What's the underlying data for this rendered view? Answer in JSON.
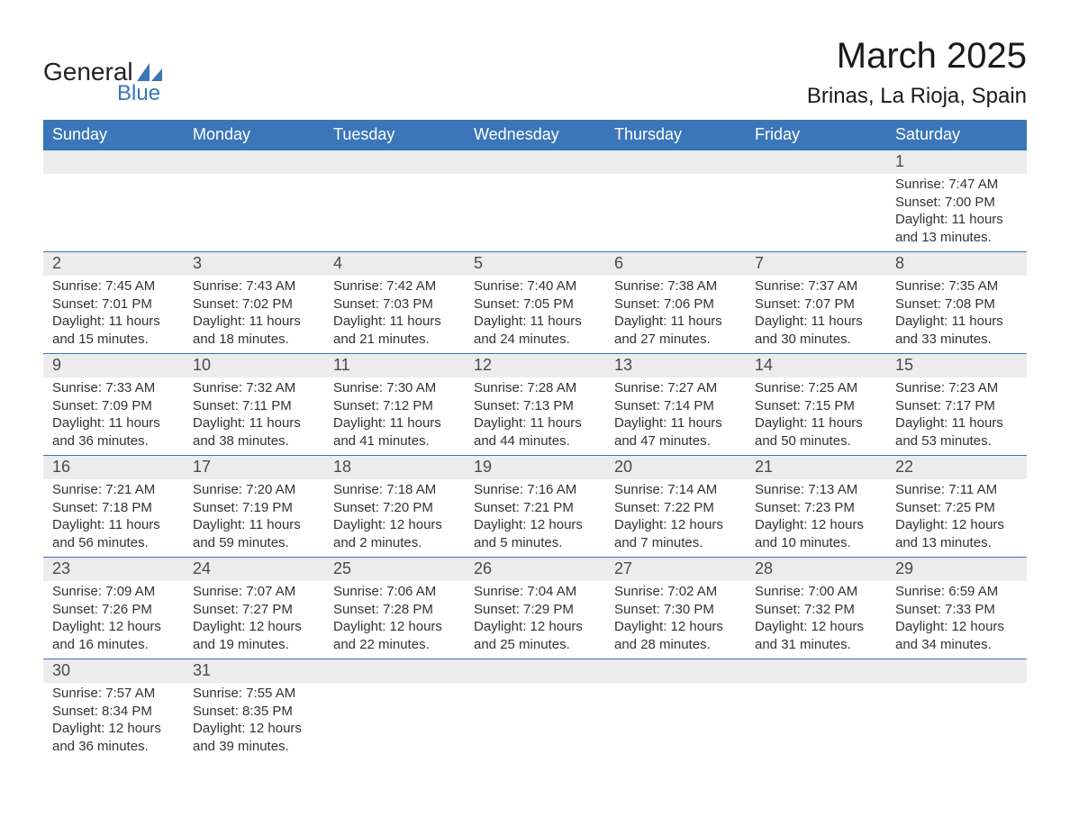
{
  "logo": {
    "text1": "General",
    "text2": "Blue",
    "sail_color": "#3a76b8"
  },
  "title": "March 2025",
  "location": "Brinas, La Rioja, Spain",
  "colors": {
    "header_bg": "#3a76b8",
    "header_text": "#ffffff",
    "daynum_bg": "#ececec",
    "daynum_text": "#4a4a4a",
    "body_text": "#333333",
    "border": "#3a76b8",
    "page_bg": "#ffffff"
  },
  "typography": {
    "title_fontsize": 40,
    "location_fontsize": 24,
    "weekday_fontsize": 18,
    "daynum_fontsize": 18,
    "body_fontsize": 15,
    "font_family": "Arial"
  },
  "weekdays": [
    "Sunday",
    "Monday",
    "Tuesday",
    "Wednesday",
    "Thursday",
    "Friday",
    "Saturday"
  ],
  "weeks": [
    [
      null,
      null,
      null,
      null,
      null,
      null,
      {
        "n": "1",
        "sunrise": "7:47 AM",
        "sunset": "7:00 PM",
        "dl": "11 hours and 13 minutes."
      }
    ],
    [
      {
        "n": "2",
        "sunrise": "7:45 AM",
        "sunset": "7:01 PM",
        "dl": "11 hours and 15 minutes."
      },
      {
        "n": "3",
        "sunrise": "7:43 AM",
        "sunset": "7:02 PM",
        "dl": "11 hours and 18 minutes."
      },
      {
        "n": "4",
        "sunrise": "7:42 AM",
        "sunset": "7:03 PM",
        "dl": "11 hours and 21 minutes."
      },
      {
        "n": "5",
        "sunrise": "7:40 AM",
        "sunset": "7:05 PM",
        "dl": "11 hours and 24 minutes."
      },
      {
        "n": "6",
        "sunrise": "7:38 AM",
        "sunset": "7:06 PM",
        "dl": "11 hours and 27 minutes."
      },
      {
        "n": "7",
        "sunrise": "7:37 AM",
        "sunset": "7:07 PM",
        "dl": "11 hours and 30 minutes."
      },
      {
        "n": "8",
        "sunrise": "7:35 AM",
        "sunset": "7:08 PM",
        "dl": "11 hours and 33 minutes."
      }
    ],
    [
      {
        "n": "9",
        "sunrise": "7:33 AM",
        "sunset": "7:09 PM",
        "dl": "11 hours and 36 minutes."
      },
      {
        "n": "10",
        "sunrise": "7:32 AM",
        "sunset": "7:11 PM",
        "dl": "11 hours and 38 minutes."
      },
      {
        "n": "11",
        "sunrise": "7:30 AM",
        "sunset": "7:12 PM",
        "dl": "11 hours and 41 minutes."
      },
      {
        "n": "12",
        "sunrise": "7:28 AM",
        "sunset": "7:13 PM",
        "dl": "11 hours and 44 minutes."
      },
      {
        "n": "13",
        "sunrise": "7:27 AM",
        "sunset": "7:14 PM",
        "dl": "11 hours and 47 minutes."
      },
      {
        "n": "14",
        "sunrise": "7:25 AM",
        "sunset": "7:15 PM",
        "dl": "11 hours and 50 minutes."
      },
      {
        "n": "15",
        "sunrise": "7:23 AM",
        "sunset": "7:17 PM",
        "dl": "11 hours and 53 minutes."
      }
    ],
    [
      {
        "n": "16",
        "sunrise": "7:21 AM",
        "sunset": "7:18 PM",
        "dl": "11 hours and 56 minutes."
      },
      {
        "n": "17",
        "sunrise": "7:20 AM",
        "sunset": "7:19 PM",
        "dl": "11 hours and 59 minutes."
      },
      {
        "n": "18",
        "sunrise": "7:18 AM",
        "sunset": "7:20 PM",
        "dl": "12 hours and 2 minutes."
      },
      {
        "n": "19",
        "sunrise": "7:16 AM",
        "sunset": "7:21 PM",
        "dl": "12 hours and 5 minutes."
      },
      {
        "n": "20",
        "sunrise": "7:14 AM",
        "sunset": "7:22 PM",
        "dl": "12 hours and 7 minutes."
      },
      {
        "n": "21",
        "sunrise": "7:13 AM",
        "sunset": "7:23 PM",
        "dl": "12 hours and 10 minutes."
      },
      {
        "n": "22",
        "sunrise": "7:11 AM",
        "sunset": "7:25 PM",
        "dl": "12 hours and 13 minutes."
      }
    ],
    [
      {
        "n": "23",
        "sunrise": "7:09 AM",
        "sunset": "7:26 PM",
        "dl": "12 hours and 16 minutes."
      },
      {
        "n": "24",
        "sunrise": "7:07 AM",
        "sunset": "7:27 PM",
        "dl": "12 hours and 19 minutes."
      },
      {
        "n": "25",
        "sunrise": "7:06 AM",
        "sunset": "7:28 PM",
        "dl": "12 hours and 22 minutes."
      },
      {
        "n": "26",
        "sunrise": "7:04 AM",
        "sunset": "7:29 PM",
        "dl": "12 hours and 25 minutes."
      },
      {
        "n": "27",
        "sunrise": "7:02 AM",
        "sunset": "7:30 PM",
        "dl": "12 hours and 28 minutes."
      },
      {
        "n": "28",
        "sunrise": "7:00 AM",
        "sunset": "7:32 PM",
        "dl": "12 hours and 31 minutes."
      },
      {
        "n": "29",
        "sunrise": "6:59 AM",
        "sunset": "7:33 PM",
        "dl": "12 hours and 34 minutes."
      }
    ],
    [
      {
        "n": "30",
        "sunrise": "7:57 AM",
        "sunset": "8:34 PM",
        "dl": "12 hours and 36 minutes."
      },
      {
        "n": "31",
        "sunrise": "7:55 AM",
        "sunset": "8:35 PM",
        "dl": "12 hours and 39 minutes."
      },
      null,
      null,
      null,
      null,
      null
    ]
  ],
  "labels": {
    "sunrise": "Sunrise: ",
    "sunset": "Sunset: ",
    "daylight": "Daylight: "
  }
}
